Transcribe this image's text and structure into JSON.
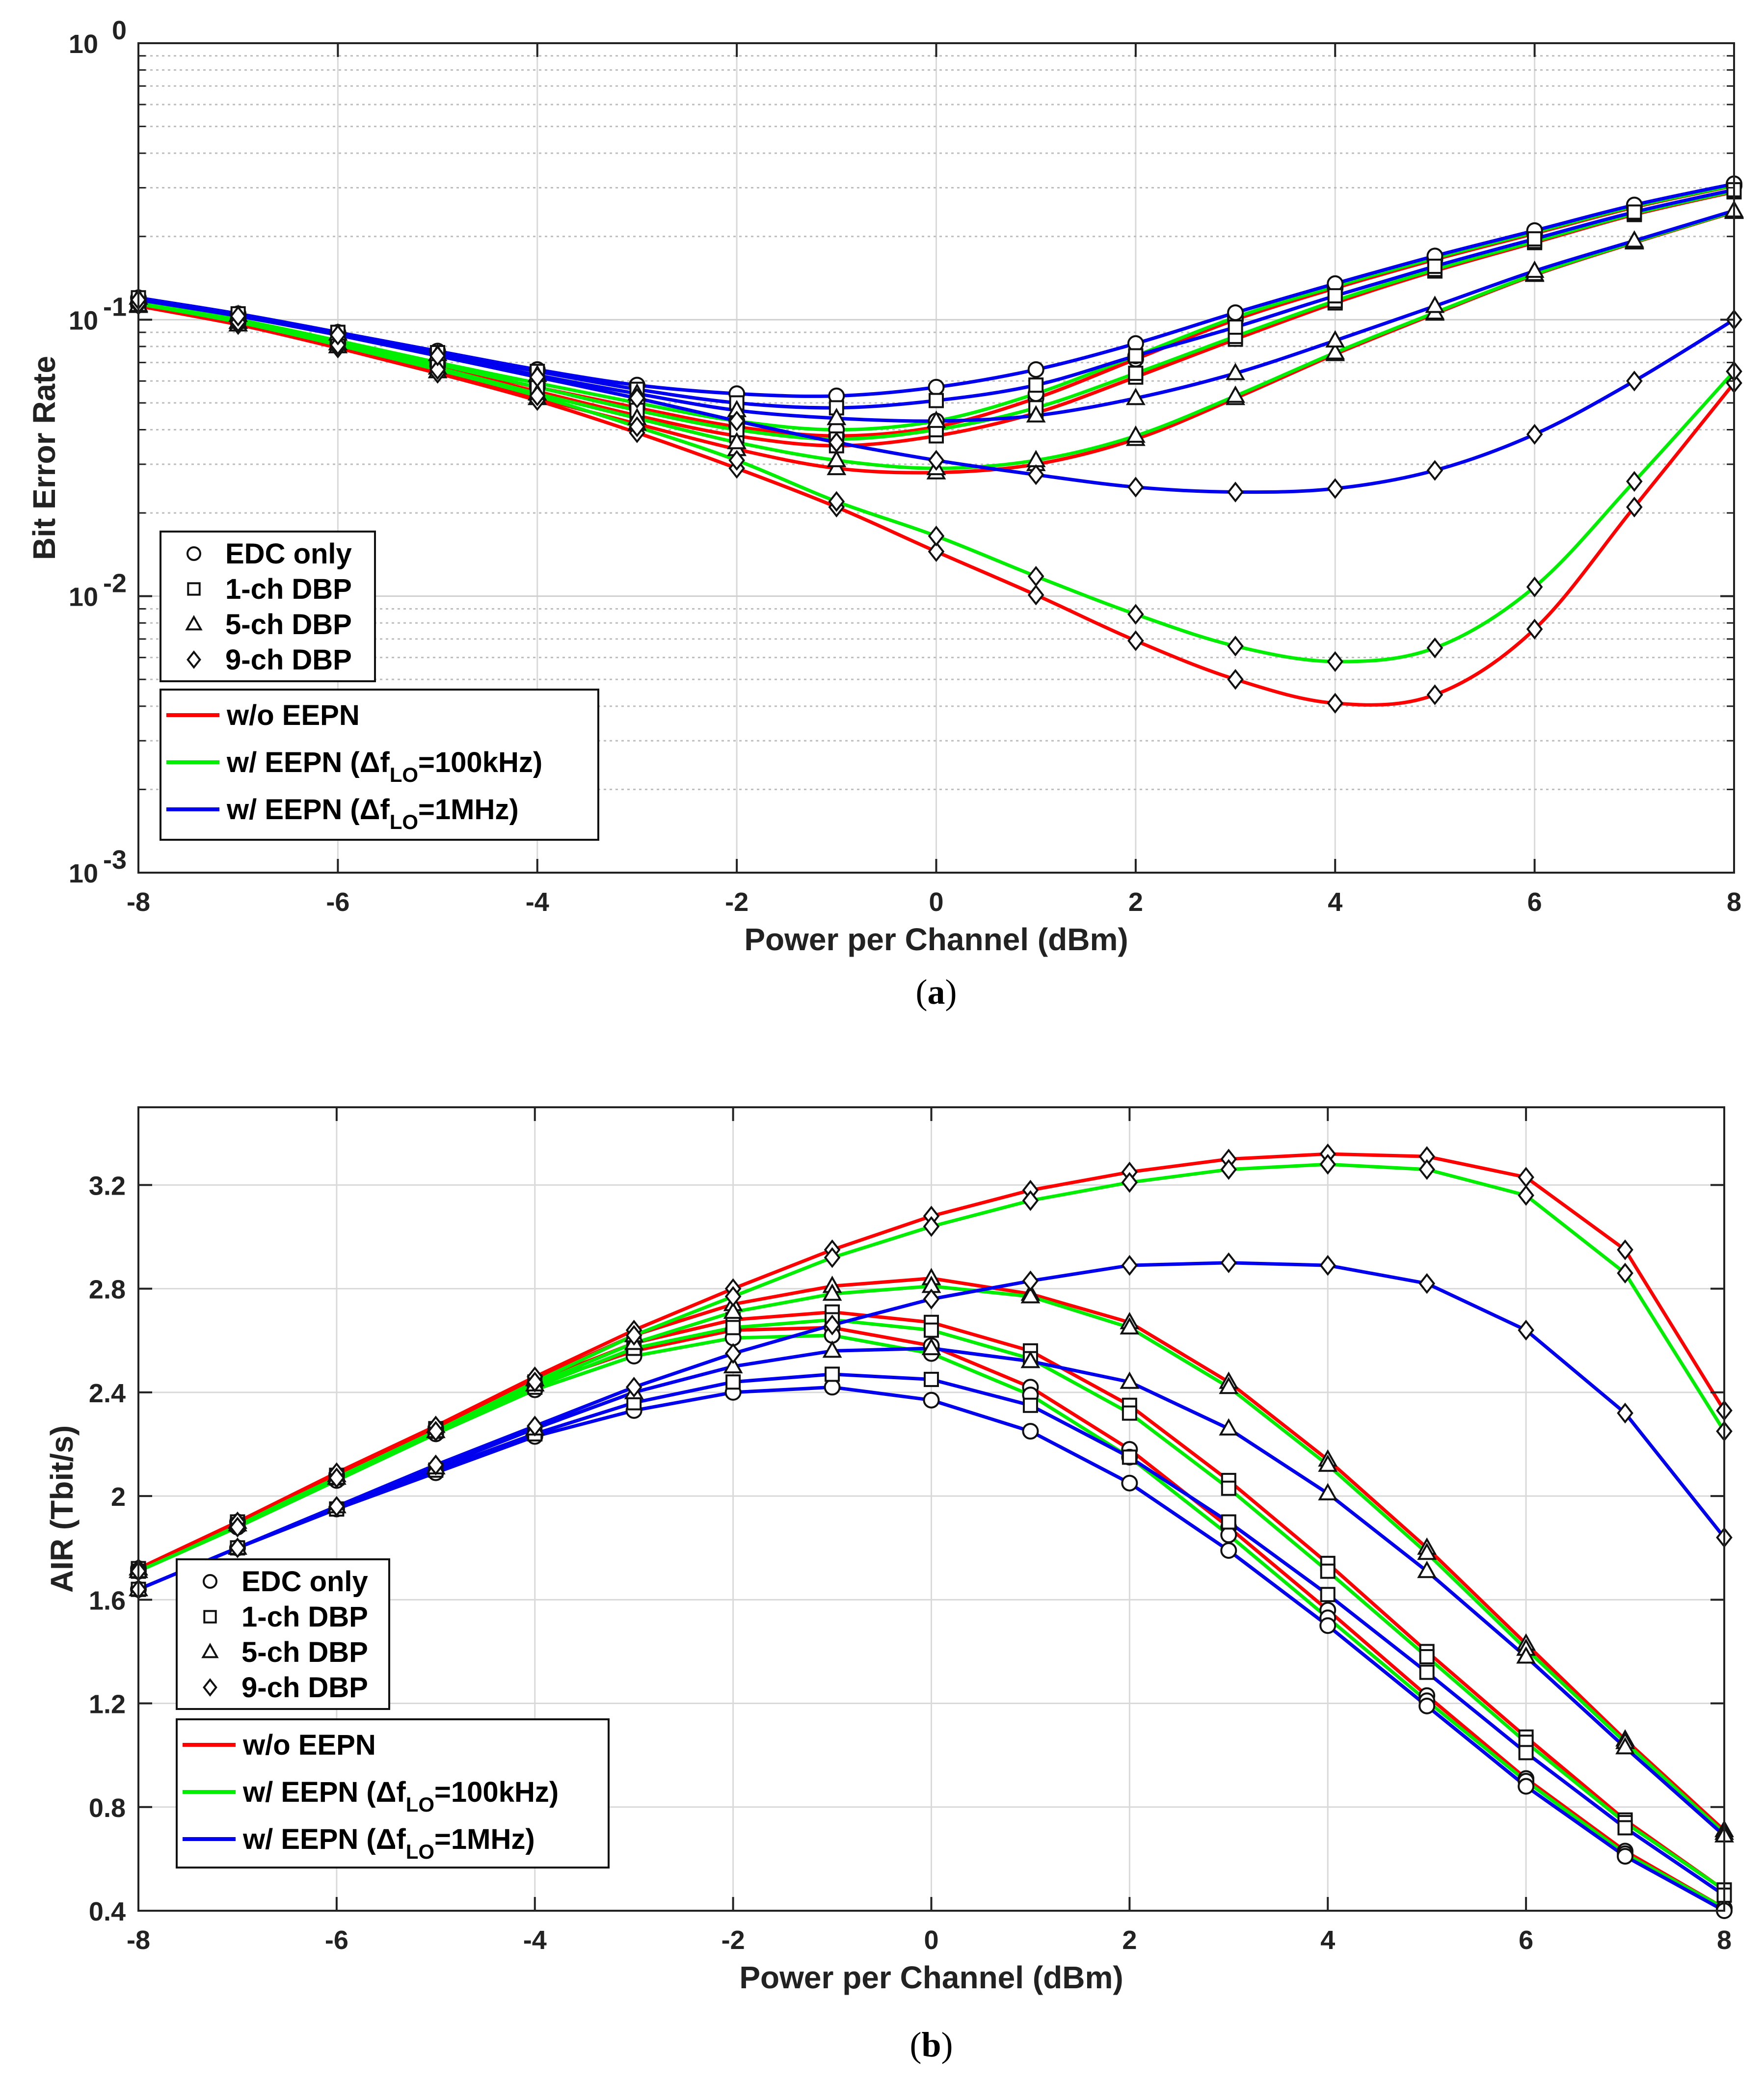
{
  "chart_data": [
    {
      "type": "line",
      "id": "a",
      "caption": "a",
      "xlabel": "Power per Channel (dBm)",
      "ylabel": "Bit Error Rate",
      "yscale": "log",
      "xlim": [
        -8,
        8
      ],
      "ylim": [
        0.001,
        1
      ],
      "xticks": [
        -8,
        -6,
        -4,
        -2,
        0,
        2,
        4,
        6,
        8
      ],
      "xtick_labels": [
        "-8",
        "-6",
        "-4",
        "-2",
        "0",
        "2",
        "4",
        "6",
        "8"
      ],
      "yticks": [
        0.001,
        0.01,
        0.1,
        1
      ],
      "ytick_labels": [
        {
          "base": "10",
          "exp": "-3"
        },
        {
          "base": "10",
          "exp": "-2"
        },
        {
          "base": "10",
          "exp": "-1"
        },
        {
          "base": "10",
          "exp": "0"
        }
      ],
      "grid": true,
      "x": [
        -8,
        -7,
        -6,
        -5,
        -4,
        -3,
        -2,
        -1,
        0,
        1,
        2,
        3,
        4,
        5,
        6,
        7,
        8
      ],
      "marker_legend": [
        {
          "marker": "circle",
          "label": "EDC only"
        },
        {
          "marker": "square",
          "label": "1-ch DBP"
        },
        {
          "marker": "triangle",
          "label": "5-ch DBP"
        },
        {
          "marker": "diamond",
          "label": "9-ch DBP"
        }
      ],
      "line_legend": [
        {
          "color": "#ff0000",
          "label": "w/o EEPN"
        },
        {
          "color": "#00ee00",
          "label_pre": "w/ EEPN (Δf",
          "label_sub": "LO",
          "label_post": "=100kHz)"
        },
        {
          "color": "#0000ee",
          "label_pre": "w/ EEPN (Δf",
          "label_sub": "LO",
          "label_post": "=1MHz)"
        }
      ],
      "series": [
        {
          "name": "EDC only, w/o EEPN",
          "color": "#ff0000",
          "marker": "circle",
          "values": [
            0.113,
            0.098,
            0.082,
            0.068,
            0.057,
            0.048,
            0.041,
            0.038,
            0.041,
            0.052,
            0.072,
            0.1,
            0.13,
            0.165,
            0.205,
            0.255,
            0.305
          ]
        },
        {
          "name": "EDC only, w/ EEPN 100kHz",
          "color": "#00ee00",
          "marker": "circle",
          "values": [
            0.115,
            0.1,
            0.084,
            0.07,
            0.059,
            0.05,
            0.043,
            0.04,
            0.043,
            0.054,
            0.074,
            0.102,
            0.132,
            0.167,
            0.207,
            0.257,
            0.306
          ]
        },
        {
          "name": "EDC only, w/ EEPN 1MHz",
          "color": "#0000ee",
          "marker": "circle",
          "values": [
            0.12,
            0.105,
            0.09,
            0.077,
            0.066,
            0.058,
            0.054,
            0.053,
            0.057,
            0.066,
            0.082,
            0.106,
            0.135,
            0.17,
            0.21,
            0.26,
            0.31
          ]
        },
        {
          "name": "1-ch DBP, w/o EEPN",
          "color": "#ff0000",
          "marker": "square",
          "values": [
            0.113,
            0.097,
            0.081,
            0.067,
            0.055,
            0.045,
            0.038,
            0.035,
            0.038,
            0.046,
            0.062,
            0.085,
            0.115,
            0.15,
            0.19,
            0.24,
            0.29
          ]
        },
        {
          "name": "1-ch DBP, w/ EEPN 100kHz",
          "color": "#00ee00",
          "marker": "square",
          "values": [
            0.114,
            0.099,
            0.083,
            0.069,
            0.057,
            0.047,
            0.04,
            0.037,
            0.04,
            0.048,
            0.064,
            0.087,
            0.117,
            0.152,
            0.192,
            0.242,
            0.292
          ]
        },
        {
          "name": "1-ch DBP, w/ EEPN 1MHz",
          "color": "#0000ee",
          "marker": "square",
          "values": [
            0.12,
            0.105,
            0.09,
            0.076,
            0.065,
            0.056,
            0.05,
            0.048,
            0.051,
            0.058,
            0.074,
            0.094,
            0.122,
            0.156,
            0.196,
            0.245,
            0.295
          ]
        },
        {
          "name": "5-ch DBP, w/o EEPN",
          "color": "#ff0000",
          "marker": "triangle",
          "values": [
            0.112,
            0.096,
            0.08,
            0.065,
            0.052,
            0.042,
            0.034,
            0.029,
            0.028,
            0.03,
            0.037,
            0.052,
            0.075,
            0.105,
            0.145,
            0.19,
            0.245
          ]
        },
        {
          "name": "5-ch DBP, w/ EEPN 100kHz",
          "color": "#00ee00",
          "marker": "triangle",
          "values": [
            0.113,
            0.098,
            0.082,
            0.067,
            0.054,
            0.044,
            0.036,
            0.031,
            0.029,
            0.031,
            0.038,
            0.053,
            0.076,
            0.106,
            0.146,
            0.191,
            0.246
          ]
        },
        {
          "name": "5-ch DBP, w/ EEPN 1MHz",
          "color": "#0000ee",
          "marker": "triangle",
          "values": [
            0.12,
            0.104,
            0.089,
            0.075,
            0.063,
            0.054,
            0.047,
            0.044,
            0.043,
            0.045,
            0.052,
            0.064,
            0.084,
            0.112,
            0.15,
            0.193,
            0.248
          ]
        },
        {
          "name": "9-ch DBP, w/o EEPN",
          "color": "#ff0000",
          "marker": "diamond",
          "values": [
            0.113,
            0.096,
            0.079,
            0.064,
            0.051,
            0.039,
            0.029,
            0.021,
            0.0145,
            0.0101,
            0.0069,
            0.005,
            0.0041,
            0.0044,
            0.0076,
            0.021,
            0.059
          ]
        },
        {
          "name": "9-ch DBP, w/ EEPN 100kHz",
          "color": "#00ee00",
          "marker": "diamond",
          "values": [
            0.114,
            0.098,
            0.081,
            0.066,
            0.053,
            0.041,
            0.031,
            0.022,
            0.0165,
            0.0118,
            0.0086,
            0.0066,
            0.0058,
            0.0065,
            0.0108,
            0.026,
            0.065
          ]
        },
        {
          "name": "9-ch DBP, w/ EEPN 1MHz",
          "color": "#0000ee",
          "marker": "diamond",
          "values": [
            0.118,
            0.103,
            0.088,
            0.074,
            0.062,
            0.052,
            0.043,
            0.036,
            0.031,
            0.0275,
            0.0248,
            0.0238,
            0.0245,
            0.0285,
            0.0385,
            0.06,
            0.1
          ]
        }
      ]
    },
    {
      "type": "line",
      "id": "b",
      "caption": "b",
      "xlabel": "Power per Channel (dBm)",
      "ylabel": "AIR (Tbit/s)",
      "yscale": "linear",
      "xlim": [
        -8,
        8
      ],
      "ylim": [
        0.4,
        3.5
      ],
      "xticks": [
        -8,
        -6,
        -4,
        -2,
        0,
        2,
        4,
        6,
        8
      ],
      "xtick_labels": [
        "-8",
        "-6",
        "-4",
        "-2",
        "0",
        "2",
        "4",
        "6",
        "8"
      ],
      "yticks": [
        0.4,
        0.8,
        1.2,
        1.6,
        2.0,
        2.4,
        2.8,
        3.2
      ],
      "ytick_labels": [
        "0.4",
        "0.8",
        "1.2",
        "1.6",
        "2",
        "2.4",
        "2.8",
        "3.2"
      ],
      "grid": true,
      "x": [
        -8,
        -7,
        -6,
        -5,
        -4,
        -3,
        -2,
        -1,
        0,
        1,
        2,
        3,
        4,
        5,
        6,
        7,
        8
      ],
      "marker_legend": [
        {
          "marker": "circle",
          "label": "EDC only"
        },
        {
          "marker": "square",
          "label": "1-ch DBP"
        },
        {
          "marker": "triangle",
          "label": "5-ch DBP"
        },
        {
          "marker": "diamond",
          "label": "9-ch DBP"
        }
      ],
      "line_legend": [
        {
          "color": "#ff0000",
          "label": "w/o EEPN"
        },
        {
          "color": "#00ee00",
          "label_pre": "w/ EEPN (Δf",
          "label_sub": "LO",
          "label_post": "=100kHz)"
        },
        {
          "color": "#0000ee",
          "label_pre": "w/ EEPN (Δf",
          "label_sub": "LO",
          "label_post": "=1MHz)"
        }
      ],
      "series": [
        {
          "name": "EDC only, w/o EEPN",
          "color": "#ff0000",
          "marker": "circle",
          "values": [
            1.72,
            1.9,
            2.08,
            2.26,
            2.43,
            2.56,
            2.64,
            2.65,
            2.58,
            2.42,
            2.18,
            1.88,
            1.56,
            1.23,
            0.91,
            0.63,
            0.41
          ]
        },
        {
          "name": "EDC only, w/ EEPN 100kHz",
          "color": "#00ee00",
          "marker": "circle",
          "values": [
            1.71,
            1.88,
            2.06,
            2.24,
            2.41,
            2.54,
            2.61,
            2.62,
            2.55,
            2.39,
            2.15,
            1.85,
            1.53,
            1.21,
            0.9,
            0.62,
            0.41
          ]
        },
        {
          "name": "EDC only, w/ EEPN 1MHz",
          "color": "#0000ee",
          "marker": "circle",
          "values": [
            1.64,
            1.8,
            1.95,
            2.09,
            2.23,
            2.33,
            2.4,
            2.42,
            2.37,
            2.25,
            2.05,
            1.79,
            1.5,
            1.19,
            0.88,
            0.61,
            0.4
          ]
        },
        {
          "name": "1-ch DBP, w/o EEPN",
          "color": "#ff0000",
          "marker": "square",
          "values": [
            1.72,
            1.9,
            2.08,
            2.26,
            2.44,
            2.59,
            2.68,
            2.71,
            2.67,
            2.56,
            2.35,
            2.06,
            1.74,
            1.4,
            1.07,
            0.75,
            0.48
          ]
        },
        {
          "name": "1-ch DBP, w/ EEPN 100kHz",
          "color": "#00ee00",
          "marker": "square",
          "values": [
            1.71,
            1.89,
            2.07,
            2.25,
            2.42,
            2.57,
            2.65,
            2.68,
            2.64,
            2.53,
            2.32,
            2.03,
            1.71,
            1.38,
            1.05,
            0.74,
            0.48
          ]
        },
        {
          "name": "1-ch DBP, w/ EEPN 1MHz",
          "color": "#0000ee",
          "marker": "square",
          "values": [
            1.64,
            1.8,
            1.95,
            2.1,
            2.24,
            2.36,
            2.44,
            2.47,
            2.45,
            2.35,
            2.15,
            1.9,
            1.62,
            1.32,
            1.01,
            0.72,
            0.46
          ]
        },
        {
          "name": "5-ch DBP, w/o EEPN",
          "color": "#ff0000",
          "marker": "triangle",
          "values": [
            1.72,
            1.9,
            2.08,
            2.27,
            2.45,
            2.62,
            2.74,
            2.81,
            2.84,
            2.78,
            2.67,
            2.44,
            2.14,
            1.8,
            1.43,
            1.06,
            0.71
          ]
        },
        {
          "name": "5-ch DBP, w/ EEPN 100kHz",
          "color": "#00ee00",
          "marker": "triangle",
          "values": [
            1.71,
            1.89,
            2.07,
            2.25,
            2.43,
            2.59,
            2.71,
            2.78,
            2.81,
            2.77,
            2.65,
            2.42,
            2.12,
            1.78,
            1.41,
            1.05,
            0.7
          ]
        },
        {
          "name": "5-ch DBP, w/ EEPN 1MHz",
          "color": "#0000ee",
          "marker": "triangle",
          "values": [
            1.64,
            1.8,
            1.96,
            2.11,
            2.26,
            2.4,
            2.5,
            2.56,
            2.57,
            2.52,
            2.44,
            2.26,
            2.01,
            1.71,
            1.38,
            1.03,
            0.69
          ]
        },
        {
          "name": "9-ch DBP, w/o EEPN",
          "color": "#ff0000",
          "marker": "diamond",
          "values": [
            1.72,
            1.9,
            2.09,
            2.27,
            2.46,
            2.64,
            2.8,
            2.95,
            3.08,
            3.18,
            3.25,
            3.3,
            3.32,
            3.31,
            3.23,
            2.95,
            2.33
          ]
        },
        {
          "name": "9-ch DBP, w/ EEPN 100kHz",
          "color": "#00ee00",
          "marker": "diamond",
          "values": [
            1.71,
            1.88,
            2.07,
            2.25,
            2.44,
            2.62,
            2.77,
            2.92,
            3.04,
            3.14,
            3.21,
            3.26,
            3.28,
            3.26,
            3.16,
            2.86,
            2.25
          ]
        },
        {
          "name": "9-ch DBP, w/ EEPN 1MHz",
          "color": "#0000ee",
          "marker": "diamond",
          "values": [
            1.64,
            1.8,
            1.96,
            2.12,
            2.27,
            2.42,
            2.55,
            2.66,
            2.76,
            2.83,
            2.89,
            2.9,
            2.89,
            2.82,
            2.64,
            2.32,
            1.84
          ]
        }
      ]
    }
  ]
}
